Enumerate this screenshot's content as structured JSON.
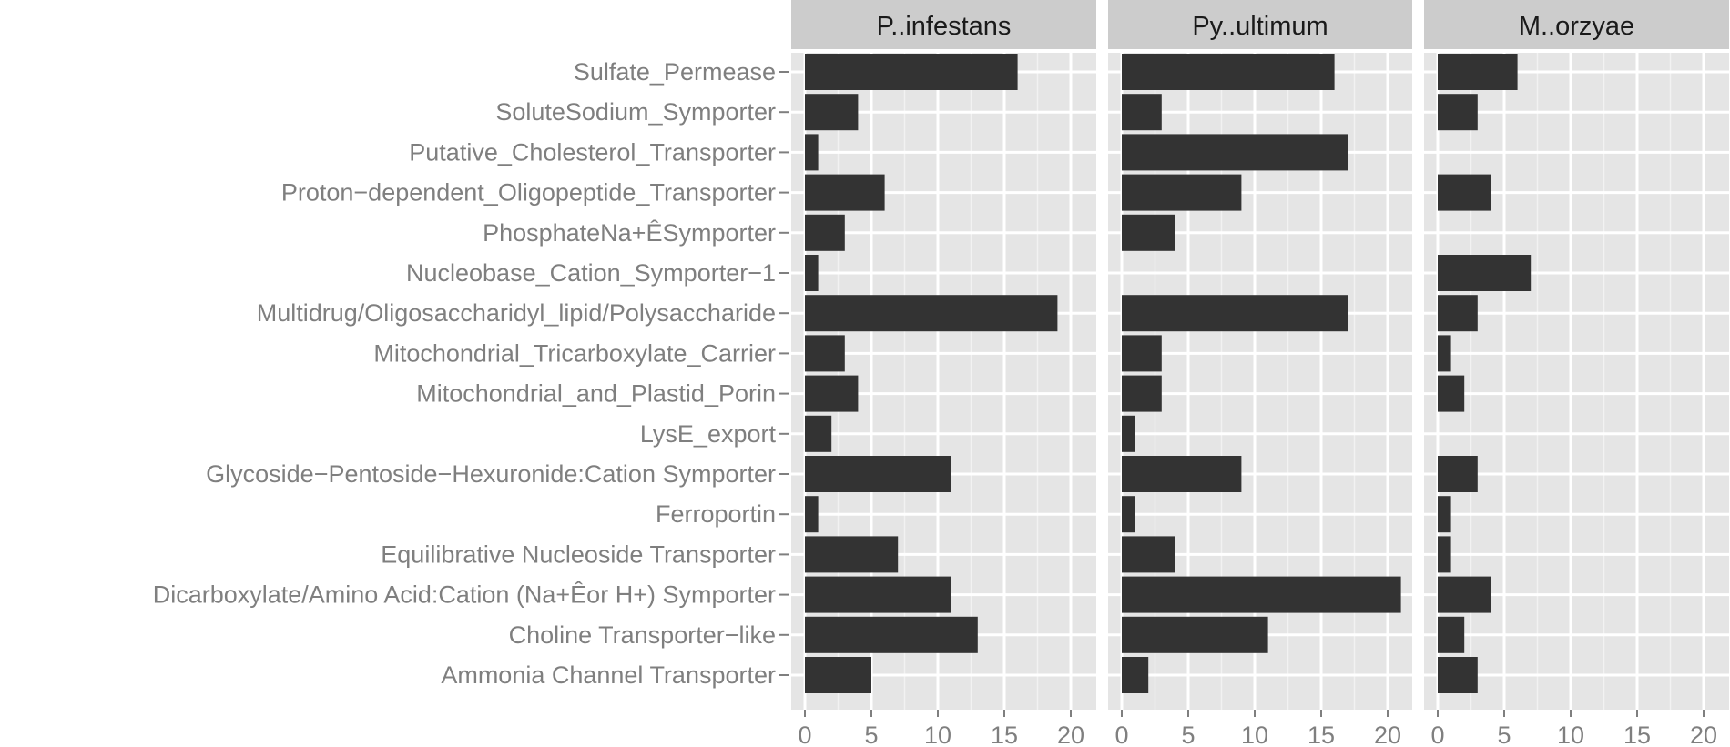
{
  "chart_data": {
    "type": "bar",
    "orientation": "horizontal",
    "faceted": true,
    "grid": true,
    "legend": "none",
    "colors": {
      "panel_bg": "#e5e5e5",
      "strip_bg": "#cccccc",
      "bar": "#333333",
      "grid": "#ffffff",
      "text": "#7f7f7f"
    },
    "xlim": [
      0,
      22
    ],
    "x_ticks": [
      0,
      5,
      10,
      15,
      20
    ],
    "categories": [
      "Sulfate_Permease",
      "SoluteSodium_Symporter",
      "Putative_Cholesterol_Transporter",
      "Proton−dependent_Oligopeptide_Transporter",
      "PhosphateNa+ÊSymporter",
      "Nucleobase_Cation_Symporter−1",
      "Multidrug/Oligosaccharidyl_lipid/Polysaccharide",
      "Mitochondrial_Tricarboxylate_Carrier",
      "Mitochondrial_and_Plastid_Porin",
      "LysE_export",
      "Glycoside−Pentoside−Hexuronide:Cation Symporter",
      "Ferroportin",
      "Equilibrative Nucleoside Transporter",
      "Dicarboxylate/Amino Acid:Cation (Na+Êor H+) Symporter",
      "Choline Transporter−like",
      "Ammonia Channel Transporter"
    ],
    "series": [
      {
        "name": "P..infestans",
        "values": [
          16,
          4,
          1,
          6,
          3,
          1,
          19,
          3,
          4,
          2,
          11,
          1,
          7,
          11,
          13,
          5
        ]
      },
      {
        "name": "Py..ultimum",
        "values": [
          16,
          3,
          17,
          9,
          4,
          0,
          17,
          3,
          3,
          1,
          9,
          1,
          4,
          21,
          11,
          2
        ]
      },
      {
        "name": "M..orzyae",
        "values": [
          6,
          3,
          0,
          4,
          0,
          7,
          3,
          1,
          2,
          0,
          3,
          1,
          1,
          4,
          2,
          3
        ]
      }
    ]
  }
}
